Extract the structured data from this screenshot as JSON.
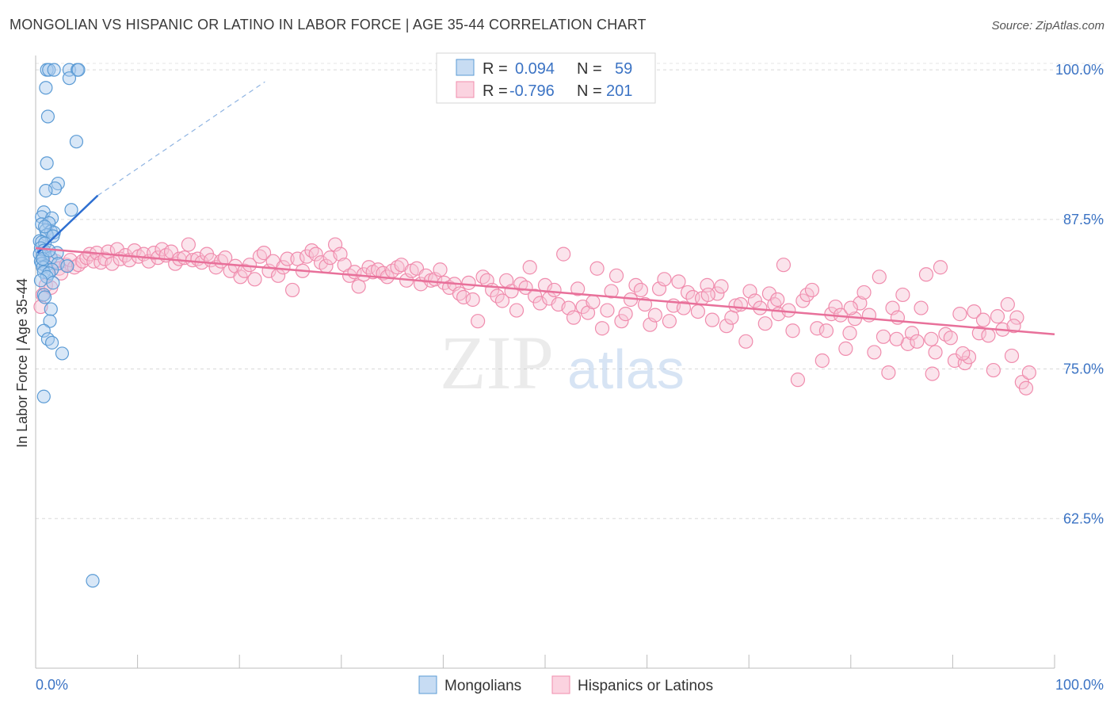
{
  "title": "MONGOLIAN VS HISPANIC OR LATINO IN LABOR FORCE | AGE 35-44 CORRELATION CHART",
  "source": "Source: ZipAtlas.com",
  "watermark": {
    "zip": "ZIP",
    "atlas": "atlas"
  },
  "legend": {
    "r_label": "R =",
    "n_label": "N =",
    "rows": [
      {
        "r": "0.094",
        "n": "59",
        "color": "#5b9bd5"
      },
      {
        "r": "-0.796",
        "n": "201",
        "color": "#f08cad"
      }
    ]
  },
  "bottom_legend": [
    {
      "label": "Mongolians",
      "color": "#5b9bd5"
    },
    {
      "label": "Hispanics or Latinos",
      "color": "#f08cad"
    }
  ],
  "colors": {
    "blue": "#5b9bd5",
    "blue_line": "#2e6fd1",
    "pink": "#f08cad",
    "pink_line": "#e8709a",
    "tick_text": "#3b73c4"
  },
  "chart_data": {
    "type": "scatter",
    "title": "MONGOLIAN VS HISPANIC OR LATINO IN LABOR FORCE | AGE 35-44 CORRELATION CHART",
    "xlabel": "",
    "ylabel": "In Labor Force | Age 35-44",
    "xlim": [
      0,
      100
    ],
    "ylim": [
      50,
      101.2
    ],
    "x_tick_labels": [
      "0.0%",
      "100.0%"
    ],
    "y_ticks": [
      62.5,
      75.0,
      87.5,
      100.0
    ],
    "y_tick_labels": [
      "62.5%",
      "75.0%",
      "87.5%",
      "100.0%"
    ],
    "grid": true,
    "series": [
      {
        "name": "Mongolians",
        "points": [
          [
            1.1,
            100
          ],
          [
            1.3,
            100
          ],
          [
            1.8,
            100
          ],
          [
            3.3,
            100
          ],
          [
            4.1,
            100
          ],
          [
            4.2,
            100
          ],
          [
            3.3,
            99.3
          ],
          [
            1.0,
            98.5
          ],
          [
            1.2,
            96.1
          ],
          [
            4.0,
            94.0
          ],
          [
            1.1,
            92.2
          ],
          [
            2.2,
            90.5
          ],
          [
            1.9,
            90.1
          ],
          [
            1.0,
            89.9
          ],
          [
            3.5,
            88.3
          ],
          [
            0.8,
            88.1
          ],
          [
            0.6,
            87.7
          ],
          [
            1.6,
            87.6
          ],
          [
            0.6,
            87.1
          ],
          [
            1.3,
            87.2
          ],
          [
            1.0,
            86.6
          ],
          [
            1.5,
            86.5
          ],
          [
            1.8,
            86.4
          ],
          [
            1.1,
            86.2
          ],
          [
            1.7,
            86.1
          ],
          [
            0.4,
            85.7
          ],
          [
            0.6,
            85.6
          ],
          [
            0.9,
            85.5
          ],
          [
            0.5,
            85.1
          ],
          [
            0.8,
            84.9
          ],
          [
            0.4,
            84.6
          ],
          [
            0.7,
            84.5
          ],
          [
            1.5,
            84.3
          ],
          [
            2.1,
            84.7
          ],
          [
            0.5,
            84.0
          ],
          [
            0.6,
            83.8
          ],
          [
            1.0,
            83.6
          ],
          [
            0.7,
            83.5
          ],
          [
            2.2,
            83.8
          ],
          [
            3.1,
            83.6
          ],
          [
            1.6,
            83.3
          ],
          [
            0.8,
            83.1
          ],
          [
            1.3,
            83.0
          ],
          [
            1.1,
            82.7
          ],
          [
            0.5,
            82.4
          ],
          [
            1.7,
            82.2
          ],
          [
            0.8,
            81.2
          ],
          [
            0.9,
            81.0
          ],
          [
            1.5,
            80.0
          ],
          [
            1.4,
            79.0
          ],
          [
            0.8,
            78.2
          ],
          [
            1.2,
            77.5
          ],
          [
            1.6,
            77.2
          ],
          [
            2.6,
            76.3
          ],
          [
            0.8,
            72.7
          ],
          [
            5.6,
            57.3
          ],
          [
            0.7,
            84.2
          ],
          [
            1.3,
            84.9
          ],
          [
            0.9,
            86.9
          ]
        ]
      },
      {
        "name": "Hispanics or Latinos",
        "points": [
          [
            0.5,
            80.2
          ],
          [
            0.7,
            81.2
          ],
          [
            1.0,
            82.0
          ],
          [
            1.5,
            81.8
          ],
          [
            2.0,
            84.0
          ],
          [
            2.3,
            83.4
          ],
          [
            2.5,
            83.0
          ],
          [
            3.0,
            83.7
          ],
          [
            3.4,
            84.1
          ],
          [
            3.8,
            83.5
          ],
          [
            4.2,
            83.7
          ],
          [
            4.6,
            84.0
          ],
          [
            5.0,
            84.3
          ],
          [
            5.3,
            84.6
          ],
          [
            5.7,
            84.0
          ],
          [
            6.0,
            84.7
          ],
          [
            6.4,
            83.9
          ],
          [
            6.8,
            84.2
          ],
          [
            7.1,
            84.8
          ],
          [
            7.5,
            83.8
          ],
          [
            8.0,
            85.0
          ],
          [
            8.3,
            84.2
          ],
          [
            8.8,
            84.5
          ],
          [
            9.2,
            84.1
          ],
          [
            9.7,
            84.9
          ],
          [
            10.1,
            84.4
          ],
          [
            10.6,
            84.6
          ],
          [
            11.1,
            84.0
          ],
          [
            11.6,
            84.7
          ],
          [
            12.0,
            84.3
          ],
          [
            12.4,
            85.0
          ],
          [
            12.8,
            84.5
          ],
          [
            13.3,
            84.8
          ],
          [
            13.7,
            83.8
          ],
          [
            14.1,
            84.2
          ],
          [
            14.6,
            84.3
          ],
          [
            15.0,
            85.4
          ],
          [
            15.4,
            84.1
          ],
          [
            15.9,
            84.2
          ],
          [
            16.3,
            83.9
          ],
          [
            16.8,
            84.6
          ],
          [
            17.2,
            84.1
          ],
          [
            17.7,
            83.5
          ],
          [
            18.2,
            84.0
          ],
          [
            18.6,
            84.3
          ],
          [
            19.1,
            83.2
          ],
          [
            19.6,
            83.6
          ],
          [
            20.1,
            82.7
          ],
          [
            20.5,
            83.2
          ],
          [
            21.0,
            83.7
          ],
          [
            21.5,
            82.5
          ],
          [
            22.0,
            84.4
          ],
          [
            22.4,
            84.7
          ],
          [
            22.9,
            83.2
          ],
          [
            23.3,
            84.0
          ],
          [
            23.8,
            82.8
          ],
          [
            24.3,
            83.5
          ],
          [
            24.7,
            84.2
          ],
          [
            25.2,
            81.6
          ],
          [
            25.7,
            84.2
          ],
          [
            26.2,
            83.2
          ],
          [
            26.6,
            84.4
          ],
          [
            27.1,
            84.9
          ],
          [
            27.5,
            84.6
          ],
          [
            28.0,
            83.9
          ],
          [
            28.5,
            83.6
          ],
          [
            28.9,
            84.3
          ],
          [
            29.4,
            85.4
          ],
          [
            29.9,
            84.6
          ],
          [
            30.3,
            83.7
          ],
          [
            30.8,
            82.8
          ],
          [
            31.3,
            83.1
          ],
          [
            31.7,
            81.9
          ],
          [
            32.2,
            82.9
          ],
          [
            32.7,
            83.5
          ],
          [
            33.1,
            83.1
          ],
          [
            33.6,
            83.3
          ],
          [
            34.1,
            83.0
          ],
          [
            34.5,
            82.7
          ],
          [
            35.0,
            83.2
          ],
          [
            35.5,
            83.5
          ],
          [
            35.9,
            83.7
          ],
          [
            36.4,
            82.4
          ],
          [
            36.9,
            83.2
          ],
          [
            37.4,
            83.4
          ],
          [
            37.8,
            82.1
          ],
          [
            38.3,
            82.8
          ],
          [
            38.8,
            82.4
          ],
          [
            39.2,
            82.5
          ],
          [
            39.7,
            83.3
          ],
          [
            40.1,
            82.2
          ],
          [
            40.6,
            81.8
          ],
          [
            41.1,
            82.1
          ],
          [
            41.6,
            81.3
          ],
          [
            42.0,
            81.0
          ],
          [
            42.5,
            82.2
          ],
          [
            42.9,
            80.8
          ],
          [
            43.4,
            79.0
          ],
          [
            43.9,
            82.7
          ],
          [
            44.3,
            82.4
          ],
          [
            44.8,
            81.6
          ],
          [
            45.3,
            81.1
          ],
          [
            45.8,
            80.7
          ],
          [
            46.2,
            82.4
          ],
          [
            46.7,
            81.5
          ],
          [
            47.2,
            79.9
          ],
          [
            47.6,
            82.1
          ],
          [
            48.1,
            81.8
          ],
          [
            48.5,
            83.5
          ],
          [
            49.0,
            81.1
          ],
          [
            49.5,
            80.5
          ],
          [
            50.0,
            82.0
          ],
          [
            50.4,
            80.9
          ],
          [
            50.9,
            81.6
          ],
          [
            51.3,
            80.4
          ],
          [
            51.8,
            84.6
          ],
          [
            52.3,
            80.1
          ],
          [
            52.8,
            79.3
          ],
          [
            53.2,
            81.7
          ],
          [
            53.7,
            80.2
          ],
          [
            54.2,
            79.7
          ],
          [
            54.7,
            80.6
          ],
          [
            55.1,
            83.4
          ],
          [
            55.6,
            78.4
          ],
          [
            56.1,
            79.9
          ],
          [
            56.5,
            81.5
          ],
          [
            57.0,
            82.8
          ],
          [
            57.5,
            79.0
          ],
          [
            57.9,
            79.6
          ],
          [
            58.4,
            80.8
          ],
          [
            58.9,
            82.0
          ],
          [
            59.4,
            81.6
          ],
          [
            59.8,
            80.4
          ],
          [
            60.3,
            78.7
          ],
          [
            60.8,
            79.5
          ],
          [
            61.2,
            81.7
          ],
          [
            61.7,
            82.5
          ],
          [
            62.2,
            79.0
          ],
          [
            62.6,
            80.3
          ],
          [
            63.1,
            82.3
          ],
          [
            63.6,
            80.1
          ],
          [
            64.0,
            81.4
          ],
          [
            64.5,
            81.0
          ],
          [
            65.0,
            79.8
          ],
          [
            65.4,
            80.9
          ],
          [
            65.9,
            82.0
          ],
          [
            66.4,
            79.1
          ],
          [
            66.9,
            81.3
          ],
          [
            67.3,
            81.9
          ],
          [
            67.8,
            78.6
          ],
          [
            68.3,
            79.3
          ],
          [
            68.7,
            80.3
          ],
          [
            69.2,
            80.4
          ],
          [
            69.7,
            77.3
          ],
          [
            70.1,
            81.5
          ],
          [
            70.6,
            80.7
          ],
          [
            71.1,
            80.1
          ],
          [
            71.6,
            78.8
          ],
          [
            72.0,
            81.3
          ],
          [
            72.5,
            80.4
          ],
          [
            72.9,
            79.6
          ],
          [
            73.4,
            83.7
          ],
          [
            73.9,
            79.9
          ],
          [
            74.3,
            78.2
          ],
          [
            74.8,
            74.1
          ],
          [
            75.3,
            80.7
          ],
          [
            75.7,
            81.2
          ],
          [
            76.2,
            81.6
          ],
          [
            76.7,
            78.4
          ],
          [
            77.2,
            75.7
          ],
          [
            77.6,
            78.2
          ],
          [
            78.1,
            79.6
          ],
          [
            78.5,
            80.2
          ],
          [
            79.0,
            79.5
          ],
          [
            79.5,
            76.7
          ],
          [
            79.9,
            78.0
          ],
          [
            80.4,
            79.2
          ],
          [
            80.9,
            80.5
          ],
          [
            81.3,
            81.4
          ],
          [
            81.8,
            79.5
          ],
          [
            82.3,
            76.4
          ],
          [
            82.8,
            82.7
          ],
          [
            83.2,
            77.7
          ],
          [
            83.7,
            74.7
          ],
          [
            84.1,
            80.1
          ],
          [
            84.6,
            79.3
          ],
          [
            85.1,
            81.2
          ],
          [
            85.6,
            77.1
          ],
          [
            86.0,
            78.0
          ],
          [
            86.5,
            77.3
          ],
          [
            86.9,
            80.1
          ],
          [
            87.4,
            82.9
          ],
          [
            87.9,
            77.5
          ],
          [
            88.3,
            76.4
          ],
          [
            88.8,
            83.5
          ],
          [
            89.3,
            77.9
          ],
          [
            89.8,
            77.6
          ],
          [
            90.2,
            75.7
          ],
          [
            90.7,
            79.6
          ],
          [
            91.2,
            75.5
          ],
          [
            91.6,
            76.0
          ],
          [
            92.1,
            79.8
          ],
          [
            92.6,
            78.0
          ],
          [
            93.0,
            79.1
          ],
          [
            93.5,
            77.8
          ],
          [
            94.0,
            74.9
          ],
          [
            94.4,
            79.4
          ],
          [
            94.9,
            78.3
          ],
          [
            95.4,
            80.4
          ],
          [
            95.8,
            76.1
          ],
          [
            96.3,
            79.3
          ],
          [
            96.8,
            73.9
          ],
          [
            97.2,
            73.4
          ],
          [
            97.5,
            74.7
          ],
          [
            96.0,
            78.6
          ],
          [
            91.0,
            76.3
          ],
          [
            88.0,
            74.6
          ],
          [
            84.5,
            77.5
          ],
          [
            80.0,
            80.1
          ],
          [
            72.8,
            80.8
          ],
          [
            66.0,
            81.2
          ]
        ]
      }
    ],
    "trend_lines": [
      {
        "series": "Mongolians",
        "x": [
          0.2,
          6.1
        ],
        "y": [
          84.7,
          89.5
        ],
        "extended_x": [
          6.1,
          22.5
        ],
        "extended_y": [
          89.5,
          99.0
        ],
        "style": "solid then dashed"
      },
      {
        "series": "Hispanics or Latinos",
        "x": [
          0.0,
          100.0
        ],
        "y": [
          85.1,
          77.9
        ],
        "style": "solid"
      }
    ]
  }
}
